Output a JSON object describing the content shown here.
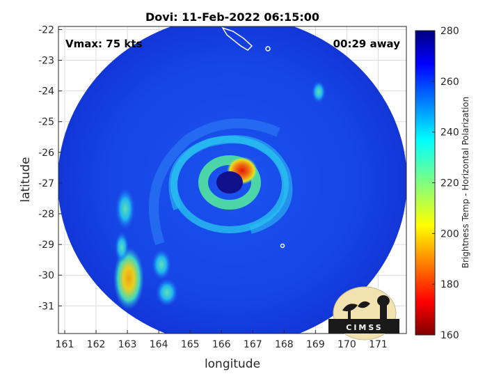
{
  "title": "Dovi: 11-Feb-2022 06:15:00",
  "annotations": {
    "vmax": "Vmax: 75 kts",
    "away": "00:29 away"
  },
  "logo_text": "CIMSS",
  "colors": {
    "background_fill": "#1440e6",
    "eye": "#10108a",
    "eyewall_cyan": "#22c8f0",
    "eyewall_green": "#4cd6a8",
    "eyewall_red": "#e81a0a",
    "rainband_yellow": "#e8d020",
    "rainband_orange": "#f08010"
  },
  "chart_data": {
    "type": "heatmap",
    "title": "Dovi: 11-Feb-2022 06:15:00",
    "xlabel": "longitude",
    "ylabel": "latitude",
    "xlim": [
      160.8,
      171.9
    ],
    "ylim": [
      -31.9,
      -21.9
    ],
    "x_ticks": [
      161,
      162,
      163,
      164,
      165,
      166,
      167,
      168,
      169,
      170,
      171
    ],
    "y_ticks": [
      -22,
      -23,
      -24,
      -25,
      -26,
      -27,
      -28,
      -29,
      -30,
      -31
    ],
    "colorbar": {
      "label": "Brightness Temp - Horizontal Polarization",
      "min": 160,
      "max": 280,
      "ticks": [
        280,
        260,
        240,
        220,
        200,
        180,
        160
      ],
      "colormap": "jet"
    },
    "storm_center": {
      "lon": 166.2,
      "lat": -26.9
    },
    "grid": true
  }
}
